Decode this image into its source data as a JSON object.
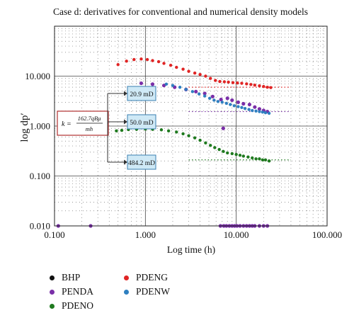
{
  "chart_data": {
    "type": "scatter",
    "title": "Case d: derivatives for conventional and numerical density models",
    "xlabel": "Log time (h)",
    "ylabel": "log dp′",
    "x_scale": "log",
    "y_scale": "log",
    "xlim": [
      0.1,
      100
    ],
    "ylim": [
      0.01,
      100
    ],
    "x_ticks": [
      "0.100",
      "1.000",
      "10.000",
      "100.000"
    ],
    "y_ticks": [
      "0.010",
      "0.100",
      "1.000",
      "10.000"
    ],
    "grid": true,
    "legend_position": "bottom-left",
    "series": [
      {
        "name": "BHP",
        "color": "#111111",
        "x": [],
        "y": []
      },
      {
        "name": "PENDA",
        "color": "#7a2fa8",
        "x": [
          0.11,
          0.25,
          0.9,
          1.2,
          1.6,
          2.1,
          2.8,
          3.6,
          4.5,
          5.5,
          6.8,
          7.2,
          8.0,
          9.0,
          10.5,
          12.0,
          14.0,
          16.0,
          18.0,
          20.0,
          22.0,
          6.7,
          7.3,
          7.8,
          8.4,
          9.0,
          9.6,
          10.2,
          11.0,
          12.0,
          13.0,
          14.0,
          15.0,
          16.0,
          18.0,
          20.0,
          22.0
        ],
        "y": [
          0.01,
          0.01,
          7.2,
          6.9,
          6.5,
          6.0,
          5.4,
          4.9,
          4.5,
          3.9,
          3.4,
          0.9,
          3.6,
          3.3,
          3.0,
          2.8,
          2.7,
          2.4,
          2.2,
          2.05,
          1.95,
          0.01,
          0.01,
          0.01,
          0.01,
          0.01,
          0.01,
          0.01,
          0.01,
          0.01,
          0.01,
          0.01,
          0.01,
          0.01,
          0.01,
          0.01,
          0.01
        ]
      },
      {
        "name": "PDENO",
        "color": "#1f7a1f",
        "x": [
          0.48,
          0.55,
          0.65,
          0.8,
          1.0,
          1.2,
          1.5,
          1.8,
          2.2,
          2.6,
          3.0,
          3.5,
          4.0,
          4.6,
          5.2,
          5.8,
          6.5,
          7.2,
          8.0,
          9.0,
          10.0,
          11.0,
          12.0,
          13.5,
          15.0,
          16.5,
          18.0,
          19.5,
          21.0,
          23.0
        ],
        "y": [
          0.8,
          0.82,
          0.85,
          0.86,
          0.87,
          0.86,
          0.84,
          0.8,
          0.76,
          0.7,
          0.64,
          0.58,
          0.52,
          0.46,
          0.41,
          0.37,
          0.34,
          0.31,
          0.29,
          0.28,
          0.27,
          0.26,
          0.25,
          0.24,
          0.23,
          0.22,
          0.22,
          0.21,
          0.21,
          0.2
        ]
      },
      {
        "name": "PDENG",
        "color": "#e02424",
        "x": [
          0.5,
          0.62,
          0.75,
          0.9,
          1.05,
          1.2,
          1.4,
          1.6,
          1.9,
          2.2,
          2.6,
          3.0,
          3.5,
          4.0,
          4.6,
          5.2,
          5.9,
          6.6,
          7.4,
          8.2,
          9.2,
          10.3,
          11.5,
          13.0,
          14.5,
          16.0,
          18.0,
          20.0,
          22.0,
          24.0
        ],
        "y": [
          17.0,
          20.0,
          21.5,
          22.0,
          21.5,
          20.5,
          19.5,
          18.0,
          16.5,
          15.0,
          13.8,
          12.5,
          11.5,
          10.8,
          10.0,
          9.0,
          8.2,
          7.8,
          7.7,
          7.6,
          7.4,
          7.3,
          7.2,
          7.0,
          6.8,
          6.6,
          6.4,
          6.2,
          6.0,
          5.9
        ]
      },
      {
        "name": "PDENW",
        "color": "#2f7fc0",
        "x": [
          1.7,
          2.0,
          2.4,
          2.8,
          3.3,
          3.9,
          4.5,
          5.1,
          5.7,
          6.3,
          7.0,
          7.8,
          8.6,
          9.5,
          10.5,
          11.5,
          12.5,
          13.8,
          15.0,
          16.5,
          18.0,
          19.5,
          21.0,
          23.0
        ],
        "y": [
          6.9,
          6.5,
          6.0,
          5.4,
          4.9,
          4.4,
          4.0,
          3.6,
          3.3,
          3.1,
          3.0,
          2.85,
          2.7,
          2.55,
          2.45,
          2.35,
          2.25,
          2.15,
          2.05,
          2.0,
          1.95,
          1.9,
          1.85,
          1.8
        ]
      }
    ],
    "dotted_extensions": [
      {
        "color": "#e02424",
        "x_from": 3.0,
        "x_to": 40.0,
        "y": 6.0
      },
      {
        "color": "#7a2fa8",
        "x_from": 3.0,
        "x_to": 40.0,
        "y": 1.95
      },
      {
        "color": "#1f7a1f",
        "x_from": 3.0,
        "x_to": 40.0,
        "y": 0.21
      }
    ],
    "permeability_labels": [
      {
        "text": "20.9 mD"
      },
      {
        "text": "50.0 mD"
      },
      {
        "text": "484.2 mD"
      }
    ],
    "equation": {
      "lhs": "k =",
      "numerator": "162.7qBμ",
      "denominator": "mh"
    }
  }
}
